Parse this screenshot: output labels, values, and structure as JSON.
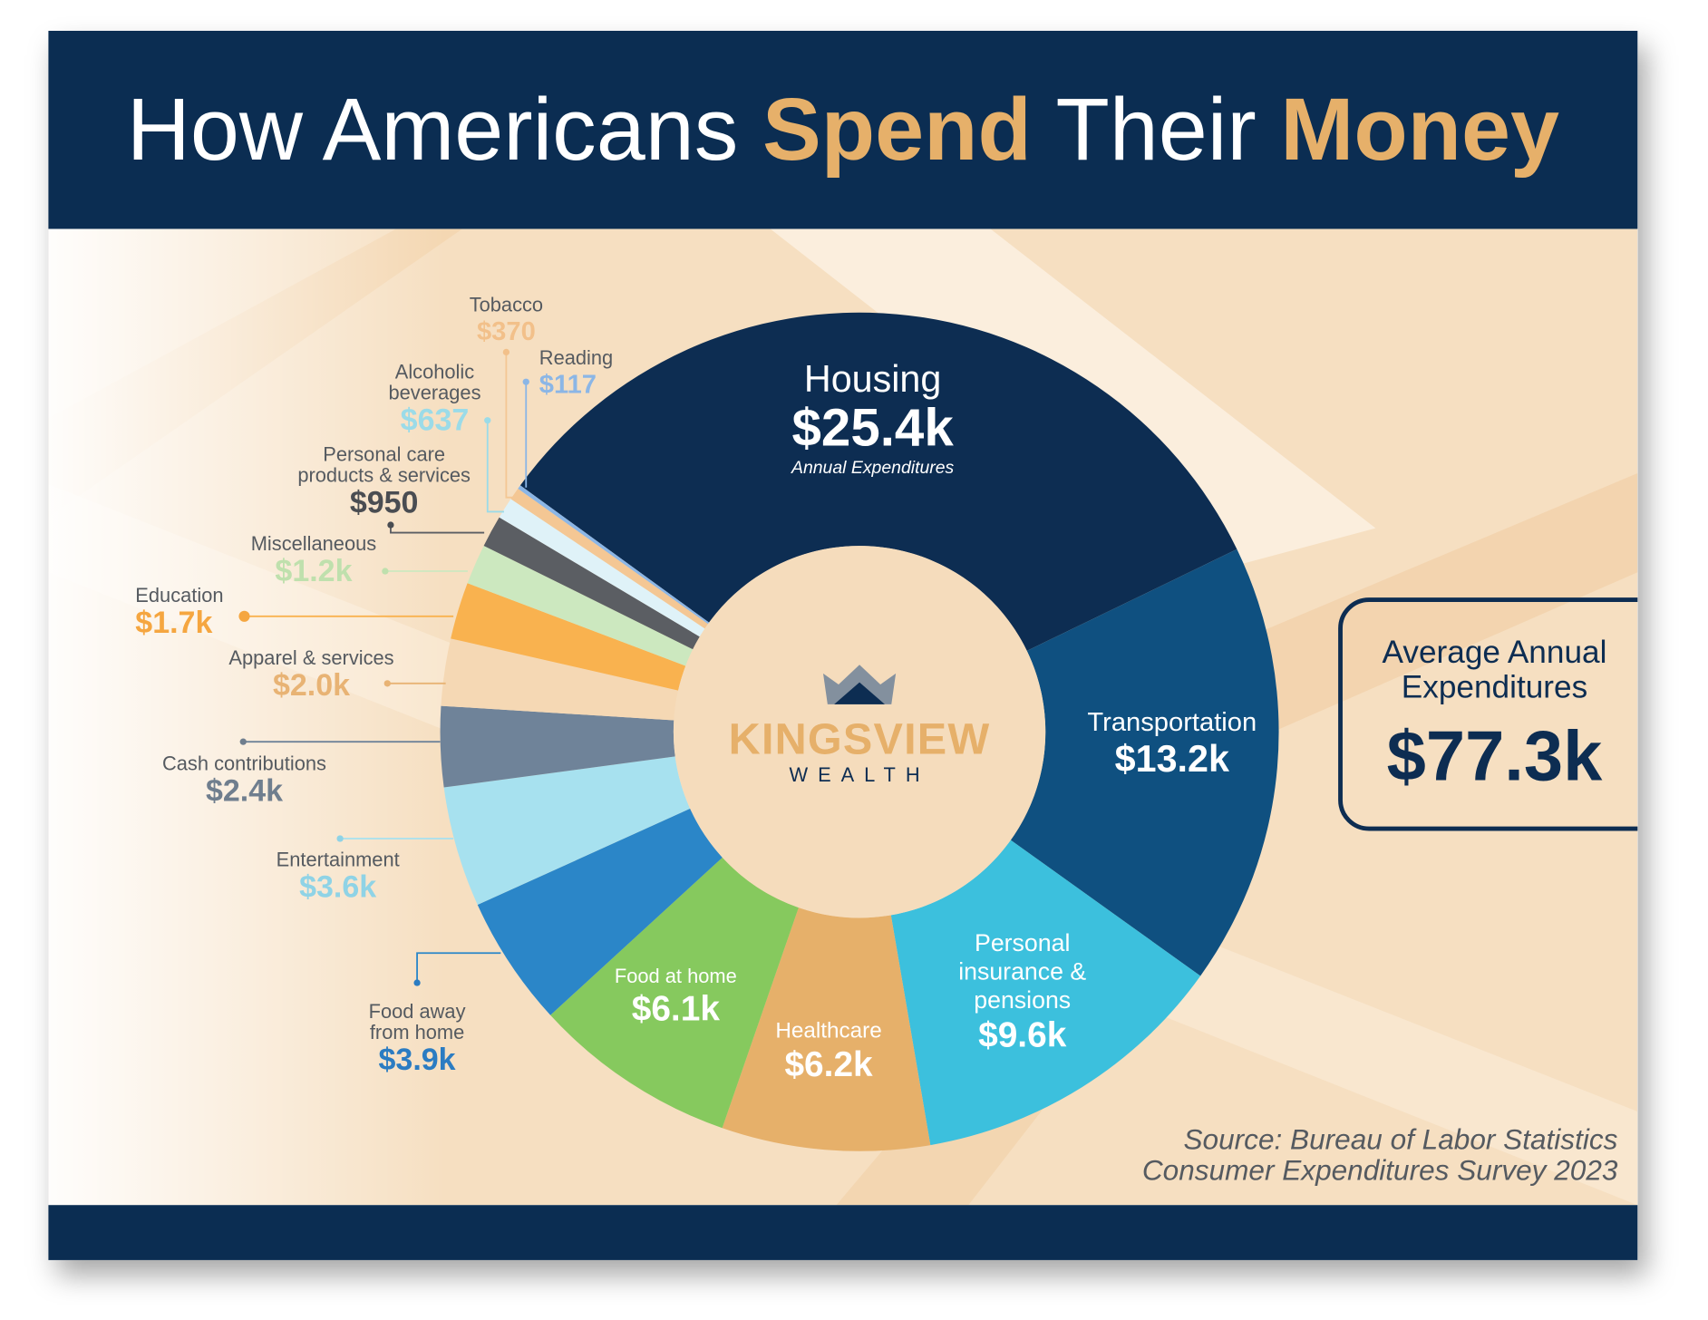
{
  "chart_data": {
    "type": "pie",
    "donut": true,
    "title": [
      {
        "text": "How Americans",
        "highlight": false
      },
      {
        "text": "Spend",
        "highlight": true
      },
      {
        "text": "Their",
        "highlight": false
      },
      {
        "text": "Money",
        "highlight": true
      }
    ],
    "categories": [
      "Housing",
      "Transportation",
      "Personal insurance & pensions",
      "Healthcare",
      "Food at home",
      "Food away from home",
      "Entertainment",
      "Cash contributions",
      "Apparel & services",
      "Education",
      "Miscellaneous",
      "Personal care products & services",
      "Alcoholic beverages",
      "Tobacco",
      "Reading"
    ],
    "values": [
      25400,
      13200,
      9600,
      6200,
      6100,
      3900,
      3600,
      2400,
      2000,
      1700,
      1200,
      950,
      637,
      370,
      117
    ],
    "value_labels": [
      "$25.4k",
      "$13.2k",
      "$9.6k",
      "$6.2k",
      "$6.1k",
      "$3.9k",
      "$3.6k",
      "$2.4k",
      "$2.0k",
      "$1.7k",
      "$1.2k",
      "$950",
      "$637",
      "$370",
      "$117"
    ],
    "colors": [
      "#0d2d52",
      "#0f5080",
      "#3cc0dd",
      "#e6b06a",
      "#86c95e",
      "#2b86c8",
      "#a7e1ef",
      "#6f8399",
      "#f5d8b4",
      "#f9b24f",
      "#cce8bf",
      "#5b5e63",
      "#dff2f8",
      "#f4c794",
      "#8bb6e6"
    ],
    "annotation": "Annual Expenditures",
    "total": {
      "label": "Average Annual Expenditures",
      "value": 77300,
      "value_label": "$77.3k"
    },
    "logo": {
      "name": "KINGSVIEW",
      "tagline": "WEALTH"
    },
    "source": [
      "Source: Bureau of Labor Statistics",
      "Consumer Expenditures Survey 2023"
    ]
  }
}
